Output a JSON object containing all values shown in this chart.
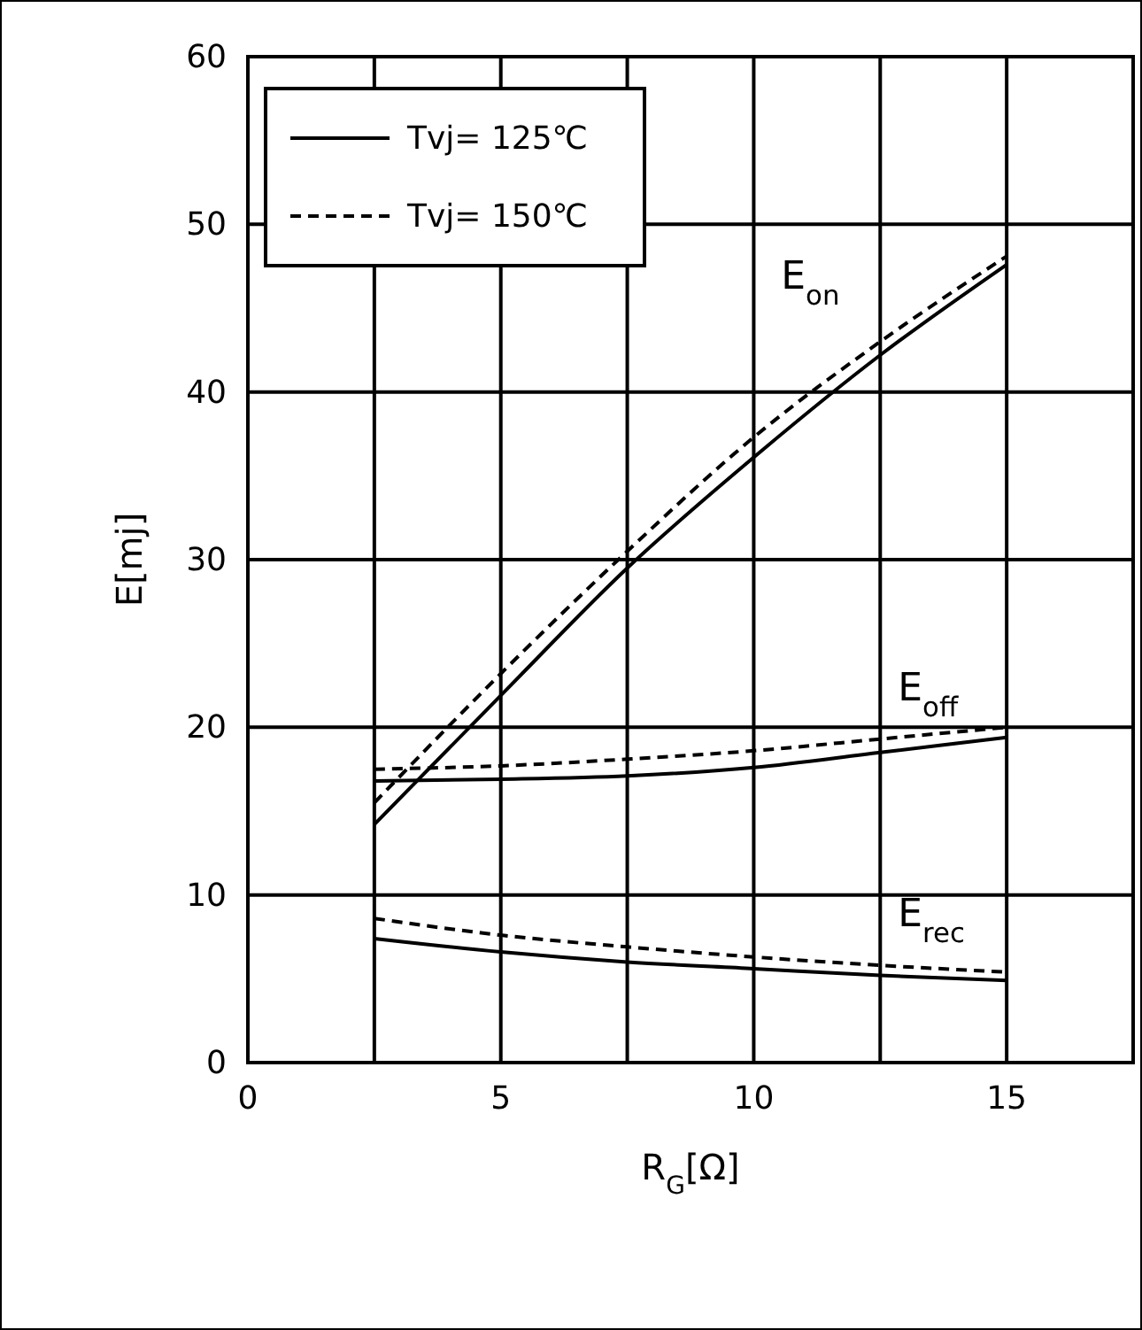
{
  "chart_data": {
    "type": "line",
    "xlabel": "R$_{G}$[Ω]",
    "ylabel": "E[mj]",
    "xlim": [
      0,
      17.5
    ],
    "xticks": [
      0,
      {
        "value": 2.5,
        "label": null
      },
      5,
      {
        "value": 7.5,
        "label": null
      },
      10,
      {
        "value": 12.5,
        "label": null
      },
      15
    ],
    "ylim": [
      0,
      60
    ],
    "yticks": [
      0,
      10,
      20,
      30,
      40,
      50,
      60
    ],
    "grid": true,
    "legend": "top left",
    "marker": "none",
    "x": [
      2.5,
      5,
      7.5,
      10,
      12.5,
      15
    ],
    "series": [
      {
        "name": "Tvj= 125℃",
        "color": "#000000",
        "line_style": "solid",
        "values": [
          14.2,
          21.9,
          29.5,
          36.1,
          42.2,
          47.6
        ]
      },
      {
        "name": "Tvj= 150℃",
        "color": "#000000",
        "line_style": "dashed",
        "values": [
          15.5,
          23.2,
          30.5,
          37.3,
          43,
          48.1
        ]
      },
      {
        "color": "#000000",
        "line_style": "solid",
        "values": [
          16.8,
          16.9,
          17.1,
          17.6,
          18.5,
          19.4
        ]
      },
      {
        "color": "#000000",
        "line_style": "dashed",
        "values": [
          17.5,
          17.7,
          18.1,
          18.6,
          19.3,
          20
        ]
      },
      {
        "color": "#000000",
        "line_style": "solid",
        "values": [
          7.4,
          6.6,
          6,
          5.6,
          5.2,
          4.9
        ]
      },
      {
        "color": "#000000",
        "line_style": "dashed",
        "values": [
          8.6,
          7.6,
          6.9,
          6.3,
          5.8,
          5.4
        ]
      }
    ],
    "annotations": [
      "E$_{on}$",
      "E$_{off}$",
      "E$_{rec}$"
    ]
  }
}
